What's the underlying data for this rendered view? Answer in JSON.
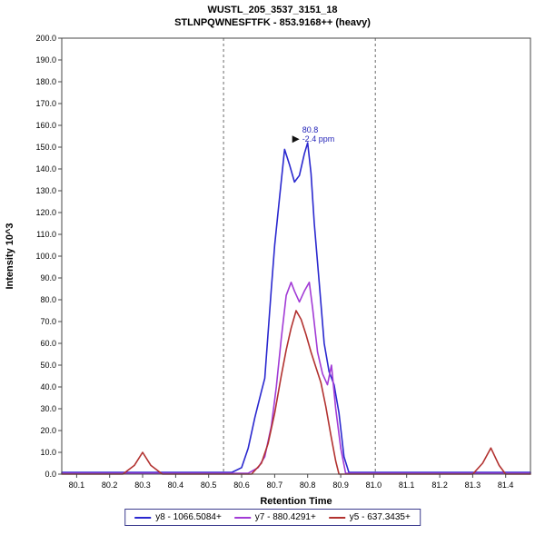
{
  "chart": {
    "title": "WUSTL_205_3537_3151_18",
    "subtitle": "STLNPQWNESFTFK - 853.9168++ (heavy)"
  },
  "chart_data": {
    "type": "line",
    "title": "WUSTL_205_3537_3151_18",
    "subtitle": "STLNPQWNESFTFK - 853.9168++ (heavy)",
    "xlabel": "Retention Time",
    "ylabel": "Intensity 10^3",
    "xlim": [
      80.055,
      81.475
    ],
    "ylim": [
      0,
      200
    ],
    "xticks": [
      80.1,
      80.2,
      80.3,
      80.4,
      80.5,
      80.6,
      80.7,
      80.8,
      80.9,
      81.0,
      81.1,
      81.2,
      81.3,
      81.4
    ],
    "yticks": [
      0,
      10,
      20,
      30,
      40,
      50,
      60,
      70,
      80,
      90,
      100,
      110,
      120,
      130,
      140,
      150,
      160,
      170,
      180,
      190,
      200
    ],
    "grid": false,
    "legend_position": "bottom-center",
    "boundaries": [
      80.545,
      81.005
    ],
    "annotation": {
      "rt": "80.8",
      "ppm": "-2.4 ppm",
      "x": 80.8,
      "y": 152
    },
    "series": [
      {
        "name": "y8 - 1066.5084+",
        "color": "#2a28cf",
        "points": [
          [
            80.055,
            0.8
          ],
          [
            80.57,
            0.8
          ],
          [
            80.6,
            3
          ],
          [
            80.62,
            12
          ],
          [
            80.64,
            26
          ],
          [
            80.66,
            38
          ],
          [
            80.67,
            44
          ],
          [
            80.69,
            85
          ],
          [
            80.7,
            105
          ],
          [
            80.715,
            127
          ],
          [
            80.73,
            149
          ],
          [
            80.745,
            142
          ],
          [
            80.76,
            134
          ],
          [
            80.775,
            137
          ],
          [
            80.79,
            147
          ],
          [
            80.8,
            152
          ],
          [
            80.81,
            138
          ],
          [
            80.82,
            115
          ],
          [
            80.835,
            88
          ],
          [
            80.85,
            60
          ],
          [
            80.865,
            47
          ],
          [
            80.88,
            41
          ],
          [
            80.895,
            28
          ],
          [
            80.91,
            8
          ],
          [
            80.925,
            0.8
          ],
          [
            81.475,
            0.8
          ]
        ]
      },
      {
        "name": "y7 - 880.4291+",
        "color": "#a23bd6",
        "points": [
          [
            80.055,
            0.4
          ],
          [
            80.62,
            0.4
          ],
          [
            80.65,
            3
          ],
          [
            80.67,
            8
          ],
          [
            80.69,
            22
          ],
          [
            80.705,
            40
          ],
          [
            80.72,
            62
          ],
          [
            80.735,
            82
          ],
          [
            80.75,
            88
          ],
          [
            80.76,
            84
          ],
          [
            80.775,
            79
          ],
          [
            80.79,
            84
          ],
          [
            80.805,
            88
          ],
          [
            80.815,
            76
          ],
          [
            80.83,
            56
          ],
          [
            80.845,
            46
          ],
          [
            80.86,
            41
          ],
          [
            80.872,
            50
          ],
          [
            80.885,
            30
          ],
          [
            80.9,
            12
          ],
          [
            80.915,
            0.4
          ],
          [
            81.475,
            0.4
          ]
        ]
      },
      {
        "name": "y5 - 637.3435+",
        "color": "#b23230",
        "points": [
          [
            80.055,
            0
          ],
          [
            80.24,
            0
          ],
          [
            80.275,
            4
          ],
          [
            80.3,
            10
          ],
          [
            80.325,
            4
          ],
          [
            80.36,
            0
          ],
          [
            80.63,
            0
          ],
          [
            80.66,
            5
          ],
          [
            80.68,
            14
          ],
          [
            80.7,
            28
          ],
          [
            80.72,
            45
          ],
          [
            80.735,
            57
          ],
          [
            80.75,
            67
          ],
          [
            80.765,
            75
          ],
          [
            80.78,
            71
          ],
          [
            80.795,
            64
          ],
          [
            80.81,
            56
          ],
          [
            80.825,
            49
          ],
          [
            80.84,
            42
          ],
          [
            80.855,
            31
          ],
          [
            80.87,
            18
          ],
          [
            80.885,
            6
          ],
          [
            80.895,
            0
          ],
          [
            81.3,
            0
          ],
          [
            81.33,
            5
          ],
          [
            81.355,
            12
          ],
          [
            81.38,
            4
          ],
          [
            81.4,
            0
          ],
          [
            81.475,
            0
          ]
        ]
      }
    ]
  }
}
